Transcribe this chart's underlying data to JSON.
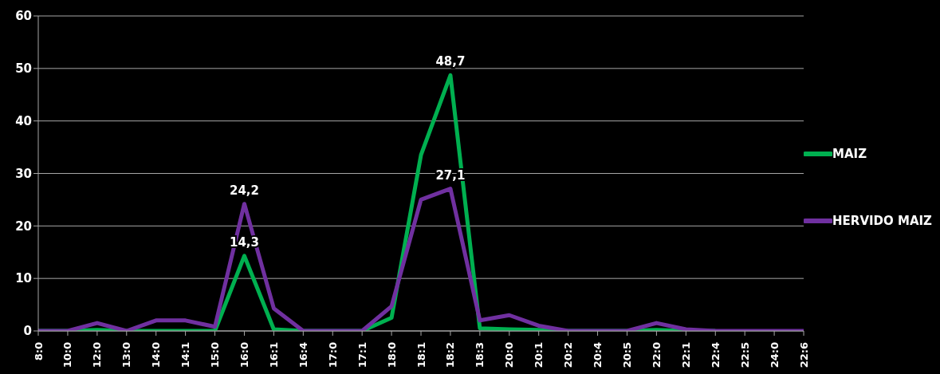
{
  "chart_data": {
    "type": "line",
    "categories": [
      "8:0",
      "10:0",
      "12:0",
      "13:0",
      "14:0",
      "14:1",
      "15:0",
      "16:0",
      "16:1",
      "16:4",
      "17:0",
      "17:1",
      "18:0",
      "18:1",
      "18:2",
      "18:3",
      "20:0",
      "20:1",
      "20:2",
      "20:4",
      "20:5",
      "22:0",
      "22:1",
      "22:4",
      "22:5",
      "24:0",
      "22:6"
    ],
    "series": [
      {
        "name": "MAIZ",
        "color": "#00b050",
        "values": [
          0,
          0,
          0.2,
          0,
          0,
          0,
          0,
          14.3,
          0.3,
          0,
          0,
          0,
          2.5,
          33.5,
          48.7,
          0.5,
          0.3,
          0.2,
          0,
          0,
          0,
          0.2,
          0,
          0,
          null,
          null,
          null
        ],
        "value_labels": [
          null,
          null,
          null,
          null,
          null,
          null,
          null,
          "14,3",
          null,
          null,
          null,
          null,
          null,
          null,
          "48,7",
          null,
          null,
          null,
          null,
          null,
          null,
          null,
          null,
          null,
          null,
          null,
          null
        ]
      },
      {
        "name": "HERVIDO MAIZ",
        "color": "#7030a0",
        "values": [
          0,
          0,
          1.5,
          0,
          2,
          2,
          0.8,
          24.2,
          4.3,
          0,
          0,
          0,
          4.7,
          25,
          27.1,
          2,
          3,
          1,
          0,
          0,
          0,
          1.5,
          0.3,
          0,
          0,
          0,
          0
        ],
        "value_labels": [
          null,
          null,
          null,
          null,
          null,
          null,
          null,
          "24,2",
          null,
          null,
          null,
          null,
          null,
          null,
          "27,1",
          null,
          null,
          null,
          null,
          null,
          null,
          null,
          null,
          null,
          null,
          null,
          null
        ]
      }
    ],
    "ylim": [
      0,
      60
    ],
    "yticks": [
      0,
      10,
      20,
      30,
      40,
      50,
      60
    ],
    "grid": "y",
    "legend": "right",
    "marker": "none",
    "line_style": "solid"
  }
}
